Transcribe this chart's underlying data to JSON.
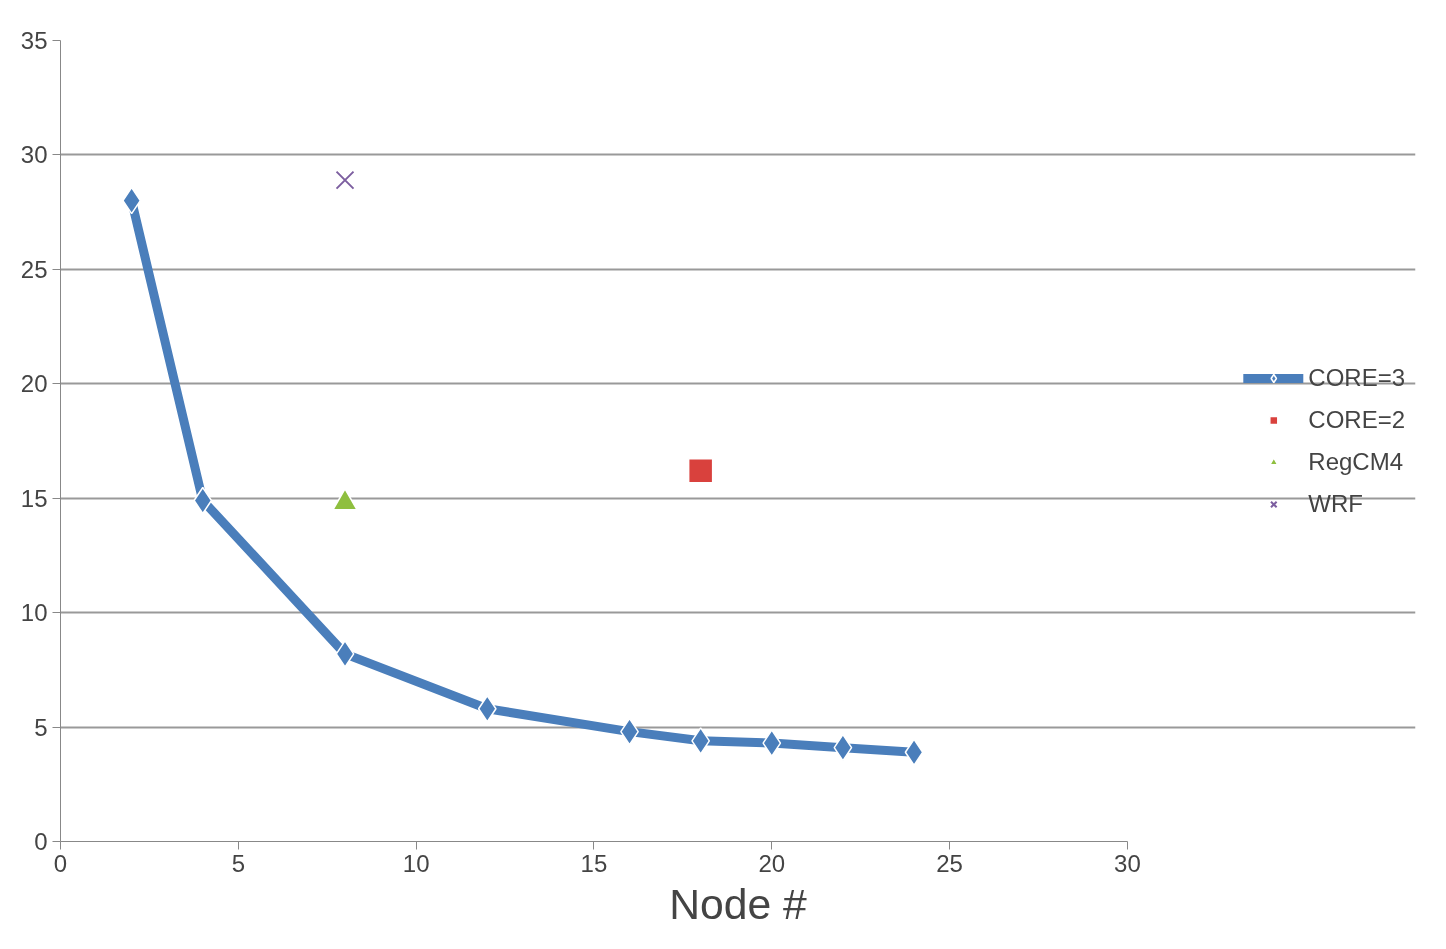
{
  "chart_data": {
    "type": "line",
    "xlabel": "Node #",
    "series": [
      {
        "name": "CORE=3",
        "color": "#4a7ebb",
        "x": [
          2,
          4,
          8,
          12,
          16,
          18,
          20,
          22,
          24
        ],
        "values": [
          28.0,
          14.9,
          8.2,
          5.8,
          4.8,
          4.4,
          4.3,
          4.1,
          3.9
        ],
        "marker": "diamond"
      },
      {
        "name": "CORE=2",
        "type": "scatter",
        "color": "#d9413d",
        "x": [
          18
        ],
        "values": [
          16.2
        ],
        "marker": "square"
      },
      {
        "name": "RegCM4",
        "type": "scatter",
        "color": "#8fbf3f",
        "x": [
          8
        ],
        "values": [
          14.8
        ],
        "marker": "triangle"
      },
      {
        "name": "WRF",
        "type": "scatter",
        "color": "#7d5fa0",
        "x": [
          8
        ],
        "values": [
          28.9
        ],
        "marker": "cross"
      }
    ],
    "xlim": [
      0,
      30
    ],
    "ylim": [
      0,
      35
    ],
    "xticks": [
      0,
      5,
      10,
      15,
      20,
      25,
      30
    ],
    "yticks": [
      0,
      5,
      10,
      15,
      20,
      25,
      30,
      35
    ],
    "grid": "y",
    "legend": "right"
  }
}
